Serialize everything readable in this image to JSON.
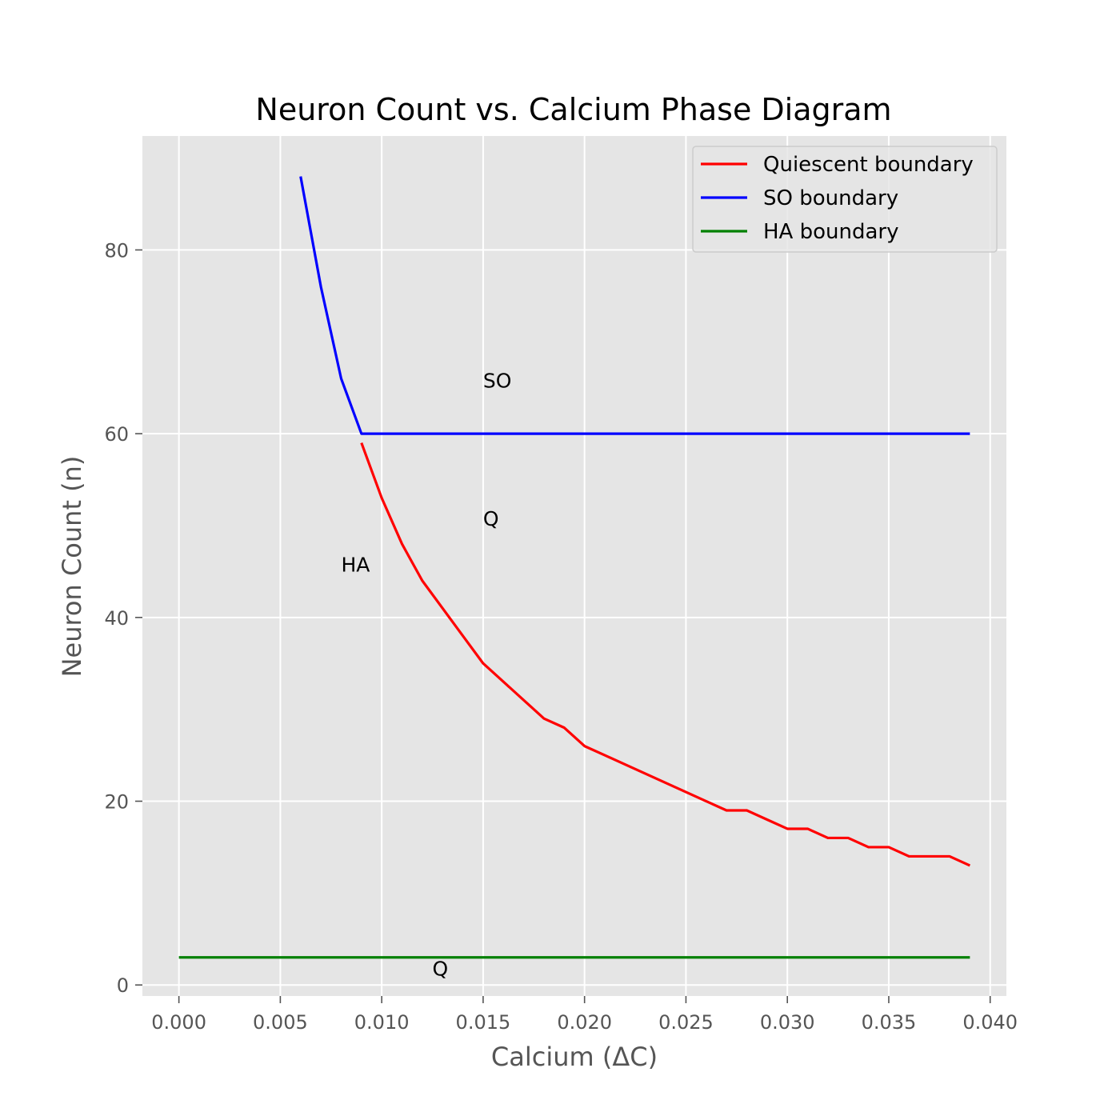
{
  "chart_data": {
    "type": "line",
    "title": "Neuron Count vs. Calcium Phase Diagram",
    "xlabel": "Calcium (ΔC)",
    "ylabel": "Neuron Count (n)",
    "xlim": [
      -0.0018,
      0.0408
    ],
    "ylim": [
      -1.2,
      92.4
    ],
    "xticks": [
      0.0,
      0.005,
      0.01,
      0.015,
      0.02,
      0.025,
      0.03,
      0.035,
      0.04
    ],
    "xtick_labels": [
      "0.000",
      "0.005",
      "0.010",
      "0.015",
      "0.020",
      "0.025",
      "0.030",
      "0.035",
      "0.040"
    ],
    "yticks": [
      0,
      20,
      40,
      60,
      80
    ],
    "ytick_labels": [
      "0",
      "20",
      "40",
      "60",
      "80"
    ],
    "grid": true,
    "legend_position": "upper right",
    "series": [
      {
        "name": "Quiescent boundary",
        "color": "#ff0000",
        "x": [
          0.009,
          0.01,
          0.011,
          0.012,
          0.013,
          0.014,
          0.015,
          0.016,
          0.017,
          0.018,
          0.019,
          0.02,
          0.021,
          0.022,
          0.023,
          0.024,
          0.025,
          0.026,
          0.027,
          0.028,
          0.029,
          0.03,
          0.031,
          0.032,
          0.033,
          0.034,
          0.035,
          0.036,
          0.037,
          0.038,
          0.039
        ],
        "y": [
          59,
          53,
          48,
          44,
          41,
          38,
          35,
          33,
          31,
          29,
          28,
          26,
          25,
          24,
          23,
          22,
          21,
          20,
          19,
          19,
          18,
          17,
          17,
          16,
          16,
          15,
          15,
          14,
          14,
          14,
          13
        ]
      },
      {
        "name": "SO boundary",
        "color": "#0000ff",
        "x": [
          0.006,
          0.007,
          0.008,
          0.009,
          0.039
        ],
        "y": [
          88,
          76,
          66,
          60,
          60
        ]
      },
      {
        "name": "HA boundary",
        "color": "#008000",
        "x": [
          0.0,
          0.039
        ],
        "y": [
          3,
          3
        ]
      }
    ],
    "annotations": [
      {
        "text": "SO",
        "x": 0.015,
        "y": 65
      },
      {
        "text": "Q",
        "x": 0.015,
        "y": 50
      },
      {
        "text": "HA",
        "x": 0.008,
        "y": 45
      },
      {
        "text": "Q",
        "x": 0.0125,
        "y": 1
      }
    ],
    "colors": {
      "plot_background": "#e5e5e5",
      "grid": "#ffffff",
      "tick_text": "#555555",
      "title_text": "#000000"
    }
  }
}
